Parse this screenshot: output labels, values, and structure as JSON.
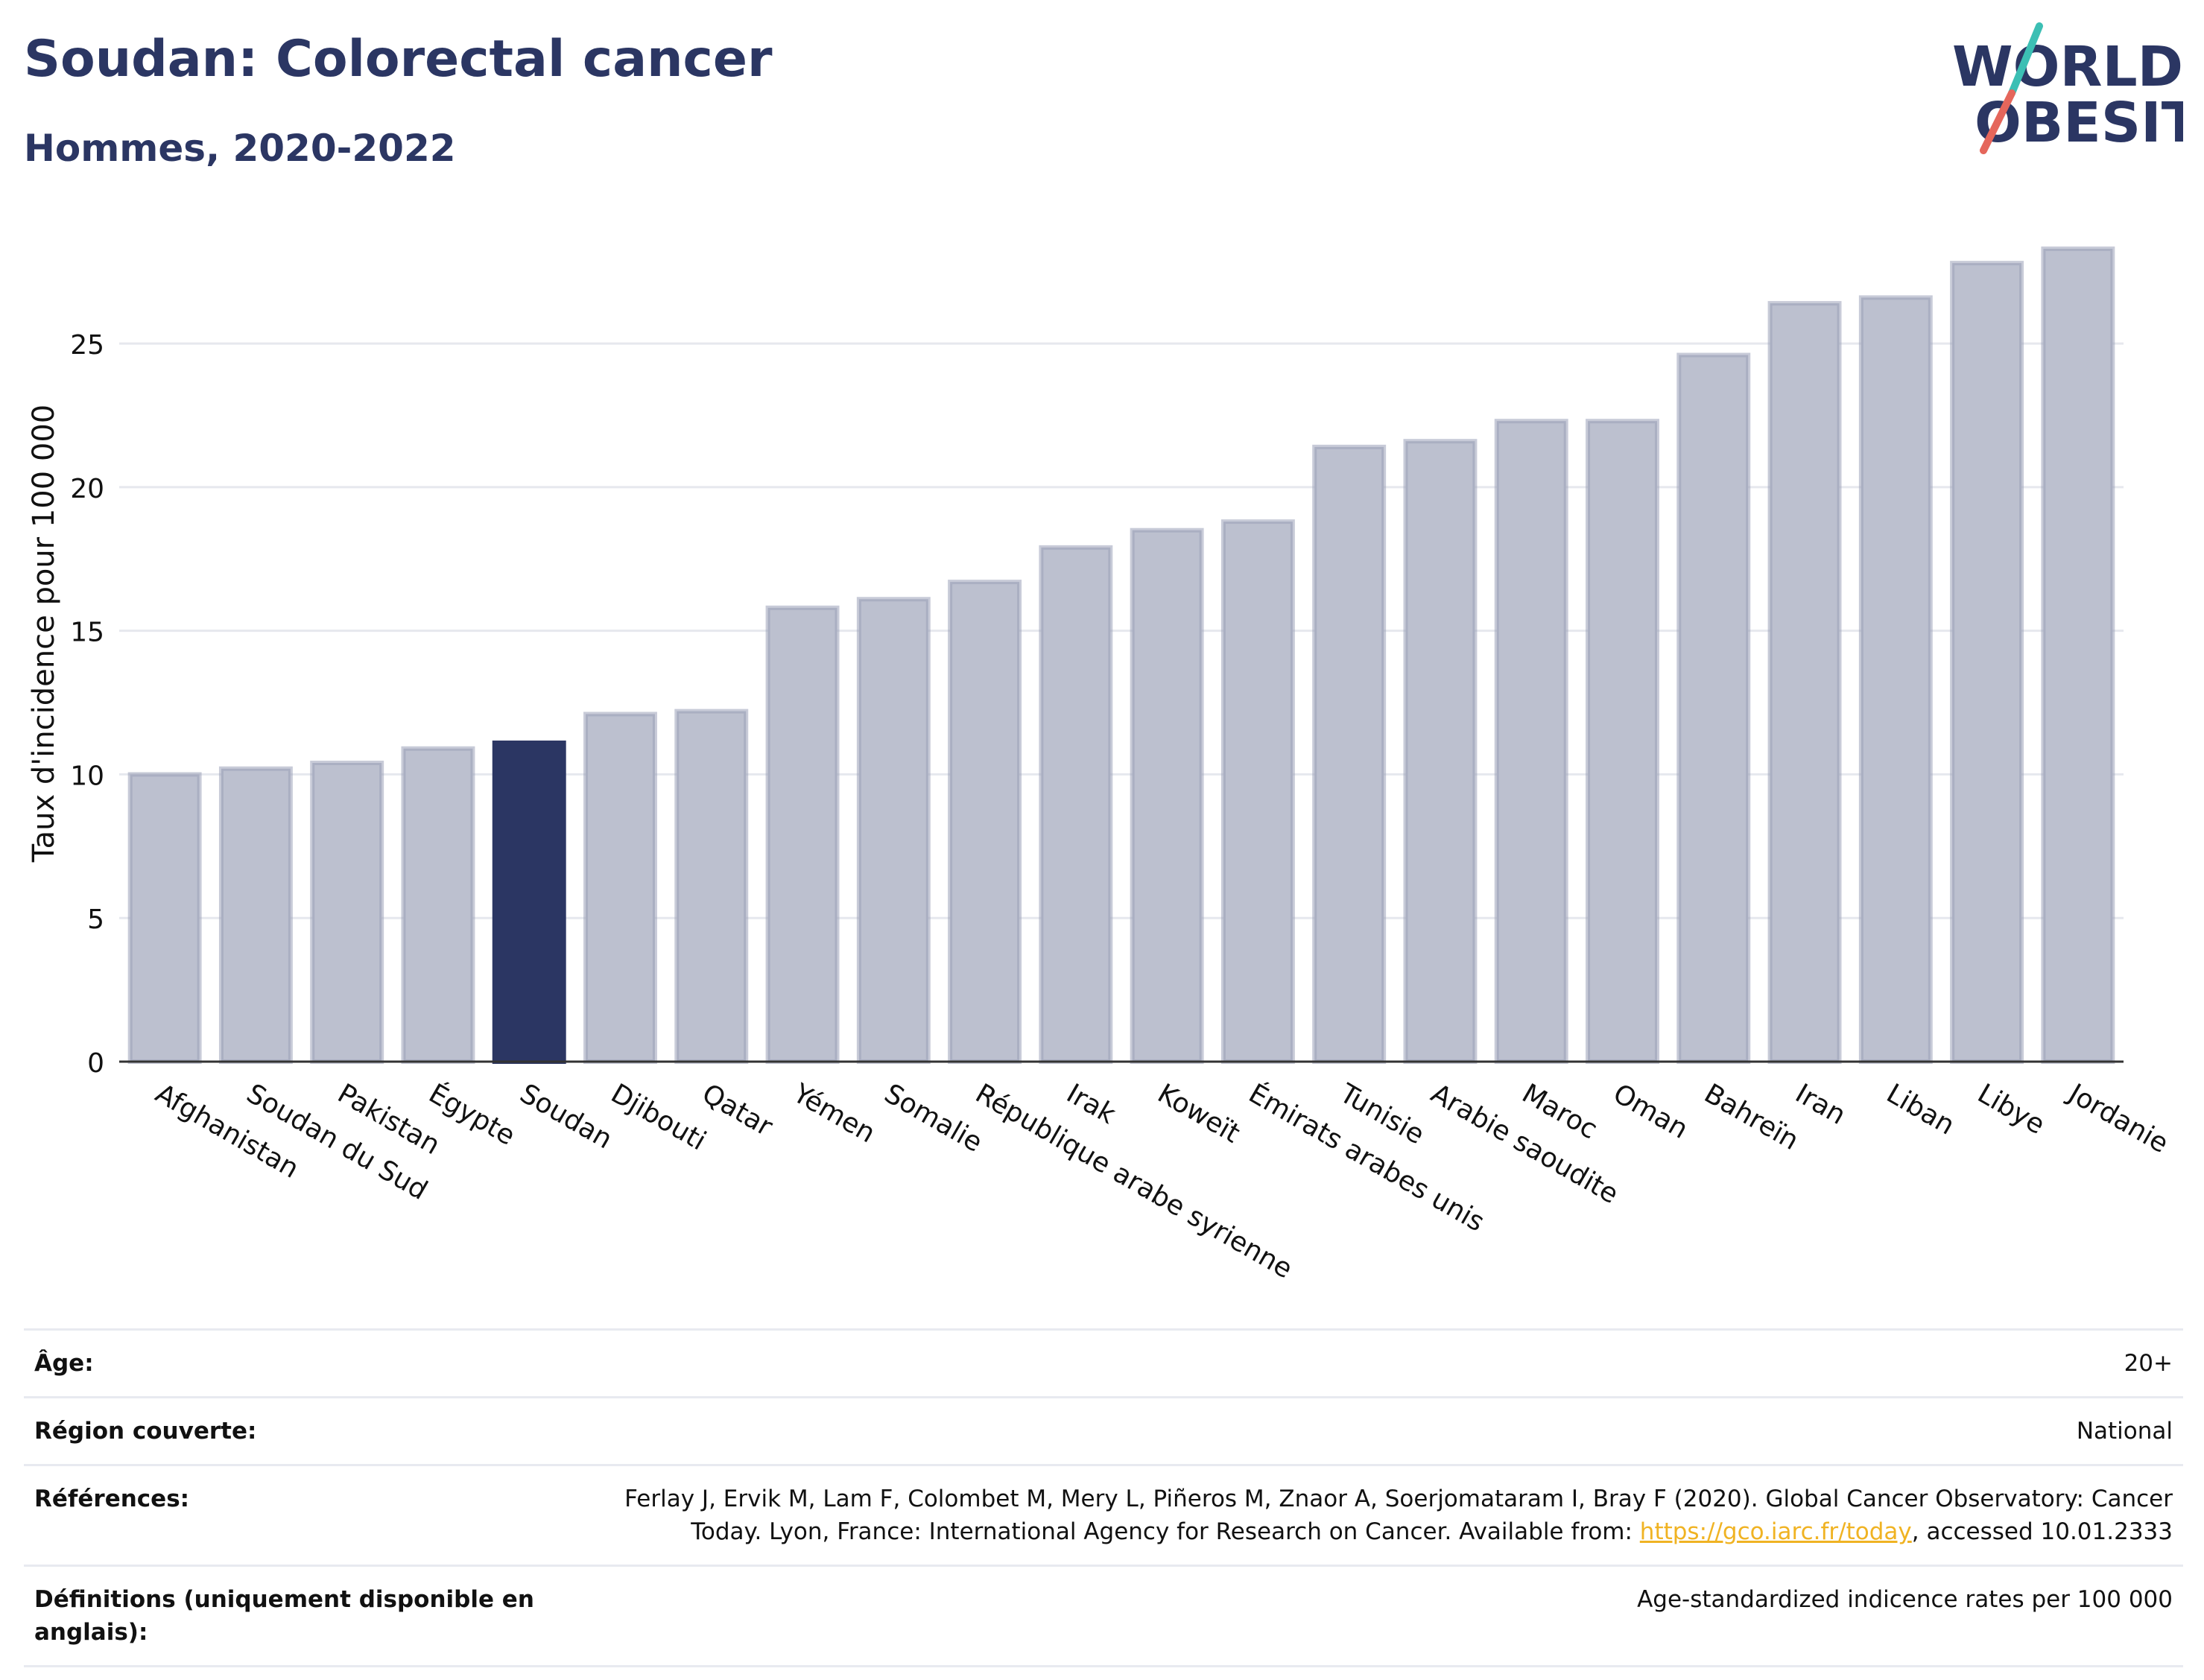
{
  "header": {
    "title": "Soudan: Colorectal cancer",
    "subtitle": "Hommes, 2020-2022",
    "logo_line1": "WORLD",
    "logo_line2": "OBESITY"
  },
  "colors": {
    "highlight": "#2b3663",
    "bar": "#bcc0cf",
    "bar_stroke": "#9aa0b8",
    "logo_teal": "#3cbfb4",
    "logo_red": "#e5665b",
    "link": "#f0b323"
  },
  "chart_data": {
    "type": "bar",
    "ylabel": "Taux d'incidence pour 100 000",
    "ylim": [
      0,
      28.4
    ],
    "yticks": [
      0,
      5,
      10,
      15,
      20,
      25
    ],
    "grid": true,
    "highlight": "Soudan",
    "categories": [
      "Afghanistan",
      "Soudan du Sud",
      "Pakistan",
      "Égypte",
      "Soudan",
      "Djibouti",
      "Qatar",
      "Yémen",
      "Somalie",
      "République arabe syrienne",
      "Irak",
      "Koweït",
      "Émirats arabes unis",
      "Tunisie",
      "Arabie saoudite",
      "Maroc",
      "Oman",
      "Bahreïn",
      "Iran",
      "Liban",
      "Libye",
      "Jordanie"
    ],
    "values": [
      10.0,
      10.2,
      10.4,
      10.9,
      11.1,
      12.1,
      12.2,
      15.8,
      16.1,
      16.7,
      17.9,
      18.5,
      18.8,
      21.4,
      21.6,
      22.3,
      22.3,
      24.6,
      26.4,
      26.6,
      27.8,
      28.3
    ]
  },
  "meta": {
    "age_label": "Âge:",
    "age_value": "20+",
    "region_label": "Région couverte:",
    "region_value": "National",
    "ref_label": "Références:",
    "ref_text_before": "Ferlay J, Ervik M, Lam F, Colombet M, Mery L, Piñeros M, Znaor A, Soerjomataram I, Bray F (2020). Global Cancer Observatory: Cancer Today. Lyon, France: International Agency for Research on Cancer. Available from: ",
    "ref_link": "https://gco.iarc.fr/today",
    "ref_text_after": ", accessed 10.01.2333",
    "def_label": "Définitions (uniquement disponible en anglais):",
    "def_value": "Age-standardized indicence rates per 100 000"
  }
}
